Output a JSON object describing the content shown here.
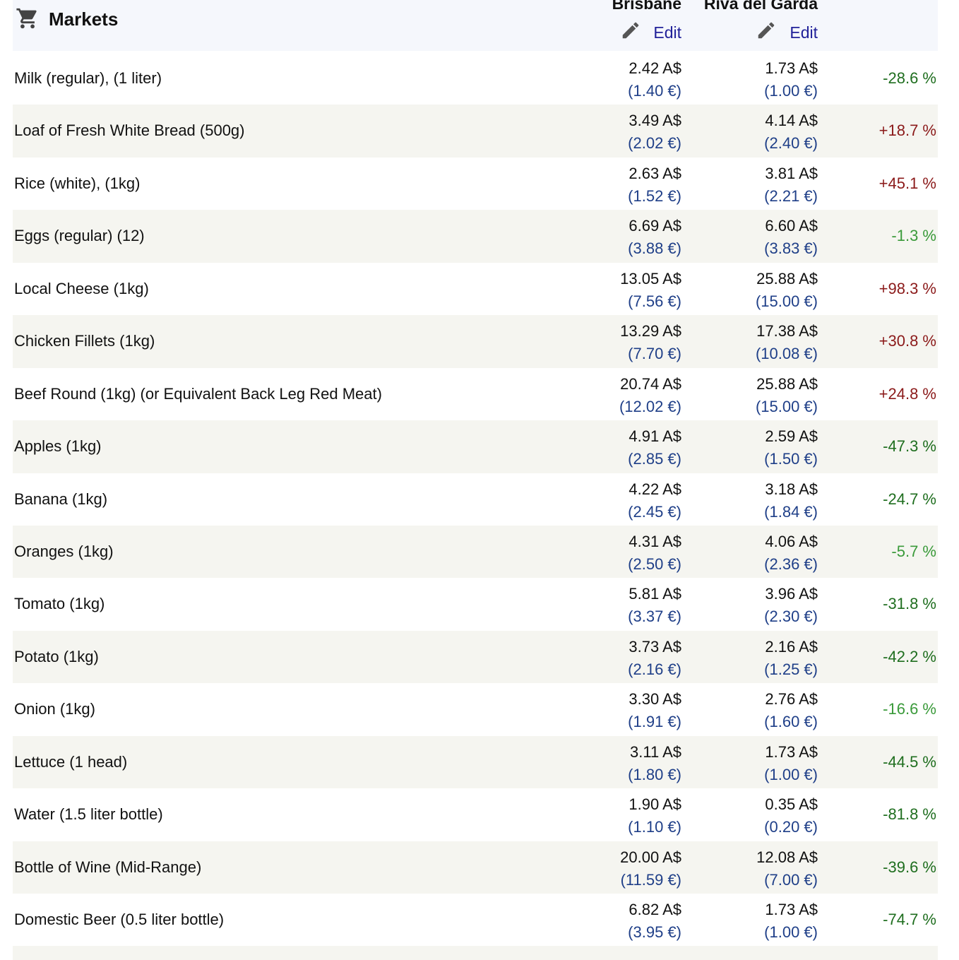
{
  "header": {
    "title": "Markets",
    "city1": "Brisbane",
    "city2": "Riva del Garda",
    "edit": "Edit"
  },
  "colors": {
    "positive": "#8b1a1a",
    "negative": "#1f6e1f",
    "negative_small": "#3a9a3a"
  },
  "rows": [
    {
      "name": "Milk (regular), (1 liter)",
      "c1": "2.42 A$",
      "c1_eur": "(1.40 €)",
      "c2": "1.73 A$",
      "c2_eur": "(1.00 €)",
      "diff": "-28.6 %",
      "tone": "negative"
    },
    {
      "name": "Loaf of Fresh White Bread (500g)",
      "c1": "3.49 A$",
      "c1_eur": "(2.02 €)",
      "c2": "4.14 A$",
      "c2_eur": "(2.40 €)",
      "diff": "+18.7 %",
      "tone": "positive"
    },
    {
      "name": "Rice (white), (1kg)",
      "c1": "2.63 A$",
      "c1_eur": "(1.52 €)",
      "c2": "3.81 A$",
      "c2_eur": "(2.21 €)",
      "diff": "+45.1 %",
      "tone": "positive"
    },
    {
      "name": "Eggs (regular) (12)",
      "c1": "6.69 A$",
      "c1_eur": "(3.88 €)",
      "c2": "6.60 A$",
      "c2_eur": "(3.83 €)",
      "diff": "-1.3 %",
      "tone": "negative_small"
    },
    {
      "name": "Local Cheese (1kg)",
      "c1": "13.05 A$",
      "c1_eur": "(7.56 €)",
      "c2": "25.88 A$",
      "c2_eur": "(15.00 €)",
      "diff": "+98.3 %",
      "tone": "positive"
    },
    {
      "name": "Chicken Fillets (1kg)",
      "c1": "13.29 A$",
      "c1_eur": "(7.70 €)",
      "c2": "17.38 A$",
      "c2_eur": "(10.08 €)",
      "diff": "+30.8 %",
      "tone": "positive"
    },
    {
      "name": "Beef Round (1kg) (or Equivalent Back Leg Red Meat)",
      "c1": "20.74 A$",
      "c1_eur": "(12.02 €)",
      "c2": "25.88 A$",
      "c2_eur": "(15.00 €)",
      "diff": "+24.8 %",
      "tone": "positive"
    },
    {
      "name": "Apples (1kg)",
      "c1": "4.91 A$",
      "c1_eur": "(2.85 €)",
      "c2": "2.59 A$",
      "c2_eur": "(1.50 €)",
      "diff": "-47.3 %",
      "tone": "negative"
    },
    {
      "name": "Banana (1kg)",
      "c1": "4.22 A$",
      "c1_eur": "(2.45 €)",
      "c2": "3.18 A$",
      "c2_eur": "(1.84 €)",
      "diff": "-24.7 %",
      "tone": "negative"
    },
    {
      "name": "Oranges (1kg)",
      "c1": "4.31 A$",
      "c1_eur": "(2.50 €)",
      "c2": "4.06 A$",
      "c2_eur": "(2.36 €)",
      "diff": "-5.7 %",
      "tone": "negative_small"
    },
    {
      "name": "Tomato (1kg)",
      "c1": "5.81 A$",
      "c1_eur": "(3.37 €)",
      "c2": "3.96 A$",
      "c2_eur": "(2.30 €)",
      "diff": "-31.8 %",
      "tone": "negative"
    },
    {
      "name": "Potato (1kg)",
      "c1": "3.73 A$",
      "c1_eur": "(2.16 €)",
      "c2": "2.16 A$",
      "c2_eur": "(1.25 €)",
      "diff": "-42.2 %",
      "tone": "negative"
    },
    {
      "name": "Onion (1kg)",
      "c1": "3.30 A$",
      "c1_eur": "(1.91 €)",
      "c2": "2.76 A$",
      "c2_eur": "(1.60 €)",
      "diff": "-16.6 %",
      "tone": "negative_small"
    },
    {
      "name": "Lettuce (1 head)",
      "c1": "3.11 A$",
      "c1_eur": "(1.80 €)",
      "c2": "1.73 A$",
      "c2_eur": "(1.00 €)",
      "diff": "-44.5 %",
      "tone": "negative"
    },
    {
      "name": "Water (1.5 liter bottle)",
      "c1": "1.90 A$",
      "c1_eur": "(1.10 €)",
      "c2": "0.35 A$",
      "c2_eur": "(0.20 €)",
      "diff": "-81.8 %",
      "tone": "negative"
    },
    {
      "name": "Bottle of Wine (Mid-Range)",
      "c1": "20.00 A$",
      "c1_eur": "(11.59 €)",
      "c2": "12.08 A$",
      "c2_eur": "(7.00 €)",
      "diff": "-39.6 %",
      "tone": "negative"
    },
    {
      "name": "Domestic Beer (0.5 liter bottle)",
      "c1": "6.82 A$",
      "c1_eur": "(3.95 €)",
      "c2": "1.73 A$",
      "c2_eur": "(1.00 €)",
      "diff": "-74.7 %",
      "tone": "negative"
    }
  ]
}
